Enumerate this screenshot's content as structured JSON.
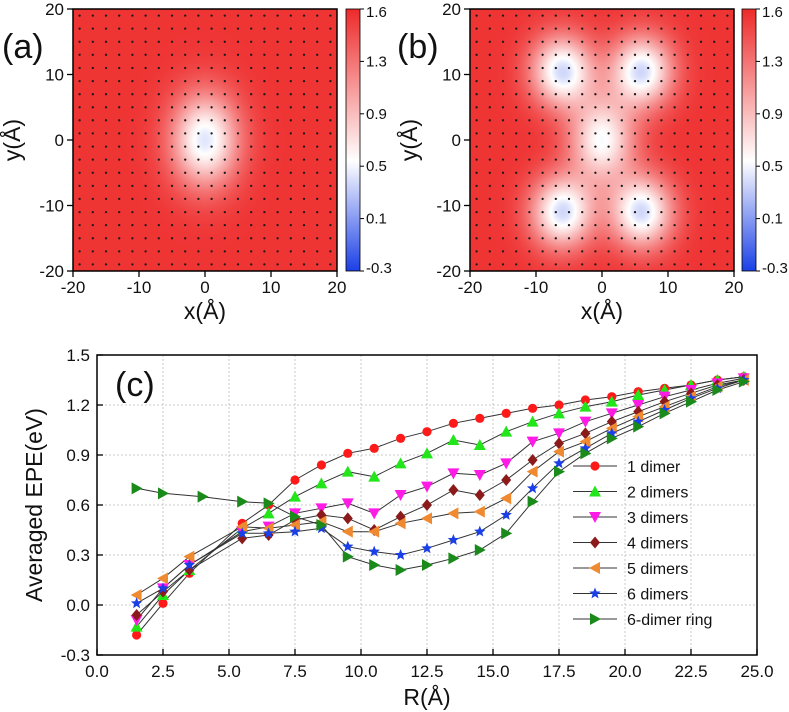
{
  "chart_data": [
    {
      "type": "heatmap",
      "panel_label": "(a)",
      "xlabel": "x(Å)",
      "ylabel": "y(Å)",
      "xlim": [
        -20,
        20
      ],
      "ylim": [
        -20,
        20
      ],
      "xticks": [
        "-20",
        "-10",
        "0",
        "10",
        "20"
      ],
      "yticks": [
        "-20",
        "-10",
        "0",
        "10",
        "20"
      ],
      "colorbar": {
        "range": [
          -0.3,
          1.6
        ],
        "ticks": [
          "1.6",
          "1.3",
          "0.9",
          "0.5",
          "0.1",
          "-0.3"
        ],
        "low_color": "#1a3fe6",
        "mid_color": "#ffffff",
        "high_color": "#ee2a2a"
      },
      "wells": [
        {
          "x": 0,
          "y": 0,
          "depth": 1.15,
          "sigma_x": 3.6,
          "sigma_y": 5.0
        }
      ],
      "background_value": 1.55,
      "dot_grid_spacing": 2
    },
    {
      "type": "heatmap",
      "panel_label": "(b)",
      "xlabel": "x(Å)",
      "ylabel": "y(Å)",
      "xlim": [
        -20,
        20
      ],
      "ylim": [
        -20,
        20
      ],
      "xticks": [
        "-20",
        "-10",
        "0",
        "10",
        "20"
      ],
      "yticks": [
        "-20",
        "-10",
        "0",
        "10",
        "20"
      ],
      "colorbar": {
        "range": [
          -0.3,
          1.6
        ],
        "ticks": [
          "1.6",
          "1.3",
          "0.9",
          "0.5",
          "0.1",
          "-0.3"
        ],
        "low_color": "#1a3fe6",
        "mid_color": "#ffffff",
        "high_color": "#ee2a2a"
      },
      "wells": [
        {
          "x": -6,
          "y": 10.5,
          "depth": 1.2,
          "sigma_x": 3.3,
          "sigma_y": 3.8
        },
        {
          "x": 6,
          "y": 10.5,
          "depth": 1.2,
          "sigma_x": 3.3,
          "sigma_y": 3.8
        },
        {
          "x": -6,
          "y": -11,
          "depth": 1.2,
          "sigma_x": 3.3,
          "sigma_y": 3.8
        },
        {
          "x": 6,
          "y": -11,
          "depth": 1.2,
          "sigma_x": 3.3,
          "sigma_y": 3.8
        },
        {
          "x": 0,
          "y": 0,
          "depth": 1.05,
          "sigma_x": 3.4,
          "sigma_y": 4.5
        }
      ],
      "background_value": 1.55,
      "dot_grid_spacing": 2
    },
    {
      "type": "line",
      "panel_label": "(c)",
      "xlabel": "R(Å)",
      "ylabel": "Averaged EPE(eV)",
      "xlim": [
        0.0,
        25.0
      ],
      "ylim": [
        -0.3,
        1.5
      ],
      "xticks": [
        "0.0",
        "2.5",
        "5.0",
        "7.5",
        "10.0",
        "12.5",
        "15.0",
        "17.5",
        "20.0",
        "22.5",
        "25.0"
      ],
      "yticks": [
        "-0.3",
        "0.0",
        "0.3",
        "0.6",
        "0.9",
        "1.2",
        "1.5"
      ],
      "grid": true,
      "legend_position": "right",
      "series": [
        {
          "name": "1 dimer",
          "color": "#ff1a1a",
          "marker": "circle",
          "x": [
            1.5,
            2.5,
            3.5,
            5.5,
            6.5,
            7.5,
            8.5,
            9.5,
            10.5,
            11.5,
            12.5,
            13.5,
            14.5,
            15.5,
            16.5,
            17.5,
            18.5,
            19.5,
            20.5,
            21.5,
            22.5,
            23.5,
            24.5
          ],
          "y": [
            -0.18,
            0.01,
            0.19,
            0.49,
            0.6,
            0.75,
            0.84,
            0.91,
            0.94,
            1.0,
            1.04,
            1.09,
            1.12,
            1.15,
            1.18,
            1.2,
            1.23,
            1.25,
            1.28,
            1.3,
            1.32,
            1.35,
            1.37
          ]
        },
        {
          "name": "2 dimers",
          "color": "#22e61a",
          "marker": "triangle-up",
          "x": [
            1.5,
            2.5,
            3.5,
            5.5,
            6.5,
            7.5,
            8.5,
            9.5,
            10.5,
            11.5,
            12.5,
            13.5,
            14.5,
            15.5,
            16.5,
            17.5,
            18.5,
            19.5,
            20.5,
            21.5,
            22.5,
            23.5,
            24.5
          ],
          "y": [
            -0.13,
            0.06,
            0.21,
            0.46,
            0.55,
            0.65,
            0.73,
            0.8,
            0.77,
            0.85,
            0.91,
            0.99,
            0.96,
            1.04,
            1.1,
            1.15,
            1.19,
            1.22,
            1.26,
            1.29,
            1.32,
            1.35,
            1.37
          ]
        },
        {
          "name": "3 dimers",
          "color": "#ff1ae6",
          "marker": "triangle-down",
          "x": [
            1.5,
            2.5,
            3.5,
            5.5,
            6.5,
            7.5,
            8.5,
            9.5,
            10.5,
            11.5,
            12.5,
            13.5,
            14.5,
            15.5,
            16.5,
            17.5,
            18.5,
            19.5,
            20.5,
            21.5,
            22.5,
            23.5,
            24.5
          ],
          "y": [
            -0.09,
            0.1,
            0.24,
            0.44,
            0.47,
            0.55,
            0.58,
            0.61,
            0.55,
            0.66,
            0.71,
            0.79,
            0.78,
            0.85,
            0.98,
            1.03,
            1.1,
            1.15,
            1.2,
            1.25,
            1.29,
            1.33,
            1.36
          ]
        },
        {
          "name": "4 dimers",
          "color": "#8b1a1a",
          "marker": "diamond",
          "x": [
            1.5,
            2.5,
            3.5,
            5.5,
            6.5,
            7.5,
            8.5,
            9.5,
            10.5,
            11.5,
            12.5,
            13.5,
            14.5,
            15.5,
            16.5,
            17.5,
            18.5,
            19.5,
            20.5,
            21.5,
            22.5,
            23.5,
            24.5
          ],
          "y": [
            -0.06,
            0.08,
            0.21,
            0.4,
            0.42,
            0.51,
            0.54,
            0.52,
            0.45,
            0.53,
            0.6,
            0.69,
            0.66,
            0.75,
            0.87,
            0.97,
            1.03,
            1.1,
            1.16,
            1.22,
            1.27,
            1.32,
            1.35
          ]
        },
        {
          "name": "5 dimers",
          "color": "#f08a30",
          "marker": "triangle-left",
          "x": [
            1.5,
            2.5,
            3.5,
            5.5,
            6.5,
            7.5,
            8.5,
            9.5,
            10.5,
            11.5,
            12.5,
            13.5,
            14.5,
            15.5,
            16.5,
            17.5,
            18.5,
            19.5,
            20.5,
            21.5,
            22.5,
            23.5,
            24.5
          ],
          "y": [
            0.06,
            0.16,
            0.29,
            0.47,
            0.46,
            0.48,
            0.5,
            0.44,
            0.44,
            0.49,
            0.52,
            0.55,
            0.56,
            0.64,
            0.8,
            0.92,
            0.98,
            1.06,
            1.13,
            1.19,
            1.25,
            1.31,
            1.35
          ]
        },
        {
          "name": "6 dimers",
          "color": "#1a3fe6",
          "marker": "star",
          "x": [
            1.5,
            2.5,
            3.5,
            5.5,
            6.5,
            7.5,
            8.5,
            9.5,
            10.5,
            11.5,
            12.5,
            13.5,
            14.5,
            15.5,
            16.5,
            17.5,
            18.5,
            19.5,
            20.5,
            21.5,
            22.5,
            23.5,
            24.5
          ],
          "y": [
            0.01,
            0.1,
            0.24,
            0.43,
            0.43,
            0.44,
            0.46,
            0.35,
            0.32,
            0.3,
            0.34,
            0.39,
            0.44,
            0.54,
            0.7,
            0.85,
            0.94,
            1.03,
            1.1,
            1.17,
            1.24,
            1.3,
            1.35
          ]
        },
        {
          "name": "6-dimer ring",
          "color": "#1a8a1a",
          "marker": "triangle-right",
          "x": [
            1.5,
            2.5,
            4.0,
            5.5,
            6.5,
            7.5,
            8.5,
            9.5,
            10.5,
            11.5,
            12.5,
            13.5,
            14.5,
            15.5,
            16.5,
            17.5,
            18.5,
            19.5,
            20.5,
            21.5,
            22.5,
            23.5,
            24.5
          ],
          "y": [
            0.7,
            0.67,
            0.65,
            0.62,
            0.61,
            0.53,
            0.48,
            0.29,
            0.24,
            0.21,
            0.24,
            0.28,
            0.33,
            0.43,
            0.62,
            0.8,
            0.91,
            1.0,
            1.07,
            1.15,
            1.22,
            1.29,
            1.34
          ]
        }
      ]
    }
  ]
}
